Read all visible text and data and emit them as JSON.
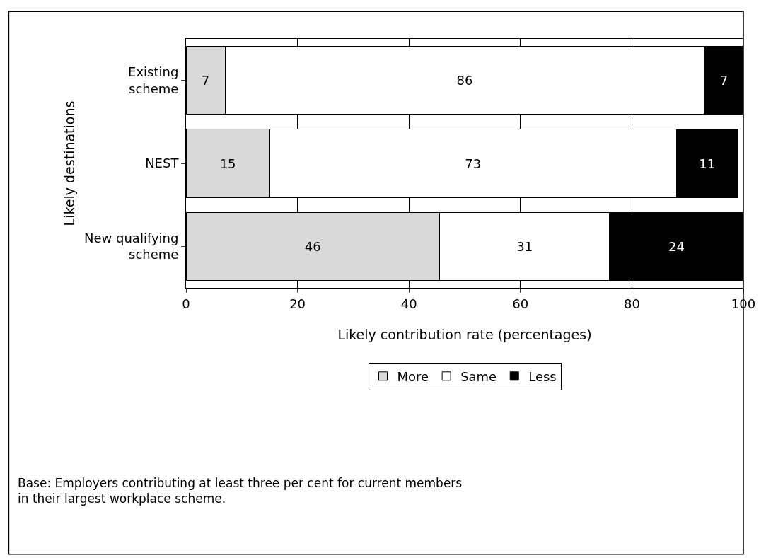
{
  "chart_data": {
    "type": "bar",
    "orientation": "horizontal",
    "stacked": true,
    "categories": [
      "Existing\nscheme",
      "NEST",
      "New qualifying\nscheme"
    ],
    "series": [
      {
        "name": "More",
        "color": "#d9d9d9",
        "values": [
          7,
          15,
          45.5
        ],
        "value_labels": [
          "7",
          "15",
          "46"
        ]
      },
      {
        "name": "Same",
        "color": "#ffffff",
        "values": [
          86,
          73,
          30.5
        ],
        "value_labels": [
          "86",
          "73",
          "31"
        ]
      },
      {
        "name": "Less",
        "color": "#000000",
        "values": [
          7,
          11,
          24
        ],
        "value_labels": [
          "7",
          "11",
          "24"
        ]
      }
    ],
    "xlim": [
      0,
      100
    ],
    "xticks": [
      0,
      20,
      40,
      60,
      80,
      100
    ],
    "xlabel": "Likely contribution rate (percentages)",
    "ylabel": "Likely destinations",
    "grid": "x",
    "legend": "bottom",
    "annotations": [
      "Base: Employers contributing at least three per cent for current members\nin their largest workplace scheme."
    ]
  }
}
